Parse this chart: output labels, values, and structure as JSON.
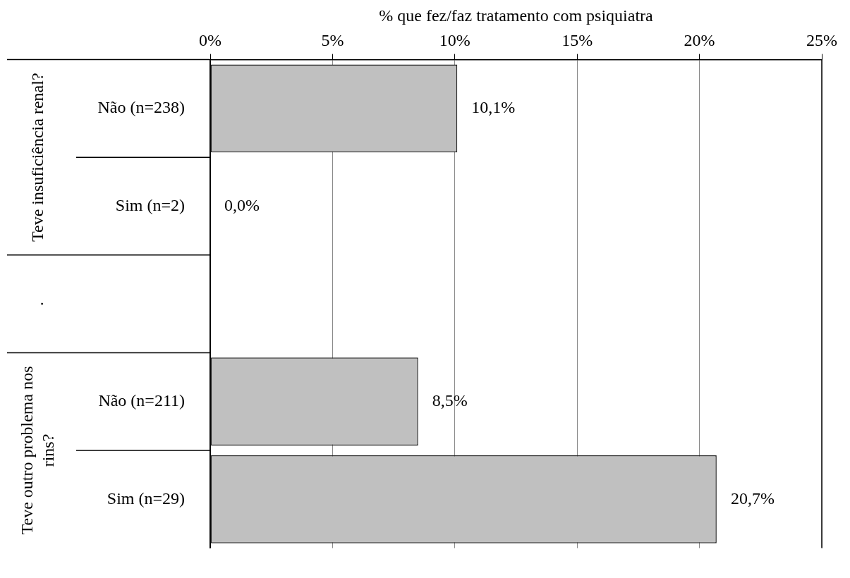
{
  "chart_data": {
    "type": "bar",
    "orientation": "horizontal",
    "xlabel": "% que fez/faz tratamento com psiquiatra",
    "categories": [
      "Não (n=238)",
      "Sim (n=2)",
      null,
      "Não (n=211)",
      "Sim (n=29)"
    ],
    "values": [
      10.1,
      0.0,
      null,
      8.5,
      20.7
    ],
    "value_labels": [
      "10,1%",
      "0,0%",
      null,
      "8,5%",
      "20,7%"
    ],
    "color": "#c0c0c0",
    "xlim": [
      0,
      25
    ],
    "xticks": [
      {
        "value": 0,
        "label": "0%"
      },
      {
        "value": 5,
        "label": "5%"
      },
      {
        "value": 10,
        "label": "10%"
      },
      {
        "value": 15,
        "label": "15%"
      },
      {
        "value": 20,
        "label": "20%"
      },
      {
        "value": 25,
        "label": "25%"
      }
    ],
    "grid": "x",
    "legend": false,
    "annotations": [
      "Teve insuficiência renal?",
      ".",
      "Teve outro problema nos rins?"
    ]
  }
}
